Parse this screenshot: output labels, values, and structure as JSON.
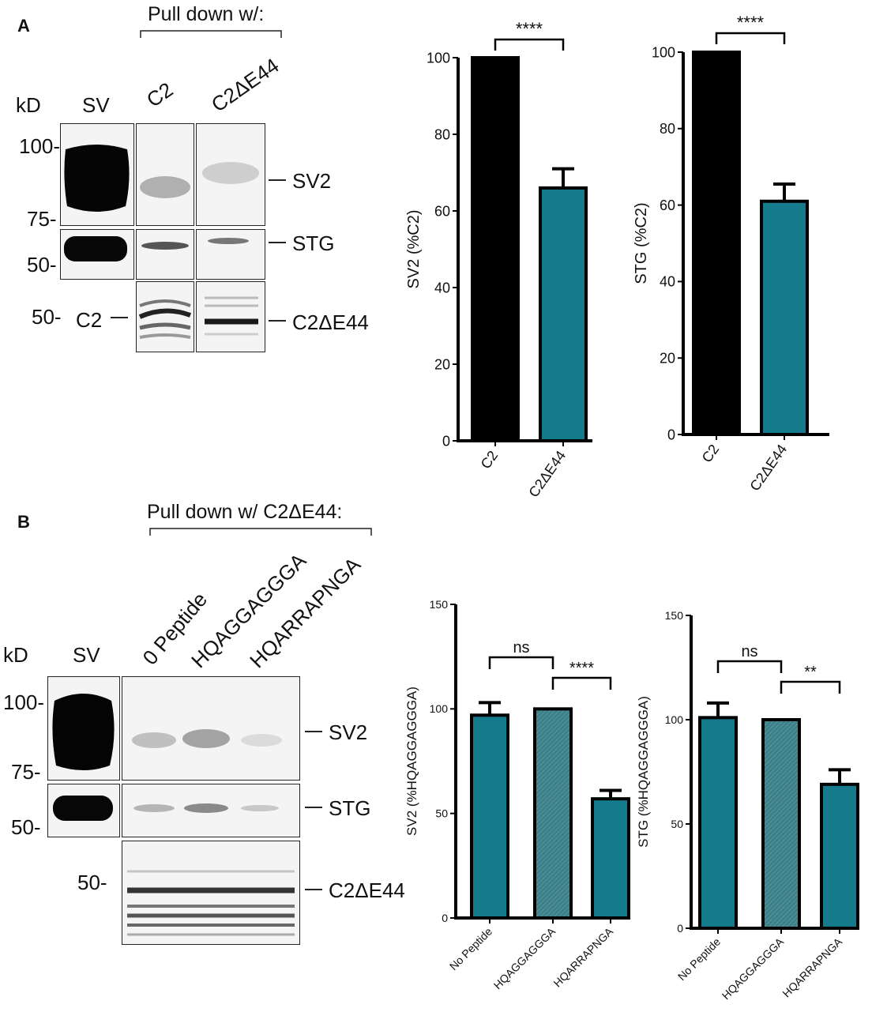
{
  "panel_a": {
    "letter": "A",
    "pulldown_label": "Pull down w/:",
    "kd_label": "kD",
    "lanes": [
      "SV",
      "C2",
      "C2ΔE44"
    ],
    "markers": [
      "100-",
      "75-",
      "50-",
      "50-"
    ],
    "c2_marker": "C2",
    "bands": [
      "SV2",
      "STG",
      "C2ΔE44"
    ]
  },
  "panel_b": {
    "letter": "B",
    "pulldown_label": "Pull down w/ C2ΔE44:",
    "kd_label": "kD",
    "lanes": [
      "SV",
      "0 Peptide",
      "HQAGGAGGGA",
      "HQARRAPNGA"
    ],
    "markers": [
      "100-",
      "75-",
      "50-",
      "50-"
    ],
    "bands": [
      "SV2",
      "STG",
      "C2ΔE44"
    ]
  },
  "colors": {
    "black_bar": "#000000",
    "teal_bar": "#147a8c",
    "hatched_bar": "#3b7f88"
  },
  "chart_data": [
    {
      "type": "bar",
      "categories": [
        "C2",
        "C2ΔE44"
      ],
      "values": [
        100,
        66
      ],
      "errors": [
        0,
        5
      ],
      "colors": [
        "#000000",
        "#147a8c"
      ],
      "ylabel": "SV2 (%C2)",
      "ylim": [
        0,
        100
      ],
      "yticks": [
        0,
        20,
        40,
        60,
        80,
        100
      ],
      "significance": [
        {
          "from": 0,
          "to": 1,
          "label": "****"
        }
      ]
    },
    {
      "type": "bar",
      "categories": [
        "C2",
        "C2ΔE44"
      ],
      "values": [
        100,
        61
      ],
      "errors": [
        0,
        4.5
      ],
      "colors": [
        "#000000",
        "#147a8c"
      ],
      "ylabel": "STG (%C2)",
      "ylim": [
        0,
        100
      ],
      "yticks": [
        0,
        20,
        40,
        60,
        80,
        100
      ],
      "significance": [
        {
          "from": 0,
          "to": 1,
          "label": "****"
        }
      ]
    },
    {
      "type": "bar",
      "categories": [
        "No Peptide",
        "HQAGGAGGGA",
        "HQARRAPNGA"
      ],
      "values": [
        97,
        100,
        57
      ],
      "errors": [
        6,
        0,
        4
      ],
      "colors": [
        "#147a8c",
        "#3b7f88",
        "#147a8c"
      ],
      "hatched": [
        false,
        true,
        false
      ],
      "ylabel": "SV2 (%HQAGGAGGGA)",
      "ylim": [
        0,
        150
      ],
      "yticks": [
        0,
        50,
        100,
        150
      ],
      "significance": [
        {
          "from": 0,
          "to": 1,
          "label": "ns"
        },
        {
          "from": 1,
          "to": 2,
          "label": "****"
        }
      ]
    },
    {
      "type": "bar",
      "categories": [
        "No Peptide",
        "HQAGGAGGGA",
        "HQARRAPNGA"
      ],
      "values": [
        101,
        100,
        69
      ],
      "errors": [
        7,
        0,
        7
      ],
      "colors": [
        "#147a8c",
        "#3b7f88",
        "#147a8c"
      ],
      "hatched": [
        false,
        true,
        false
      ],
      "ylabel": "STG (%HQAGGAGGGA)",
      "ylim": [
        0,
        150
      ],
      "yticks": [
        0,
        50,
        100,
        150
      ],
      "significance": [
        {
          "from": 0,
          "to": 1,
          "label": "ns"
        },
        {
          "from": 1,
          "to": 2,
          "label": "**"
        }
      ]
    }
  ]
}
